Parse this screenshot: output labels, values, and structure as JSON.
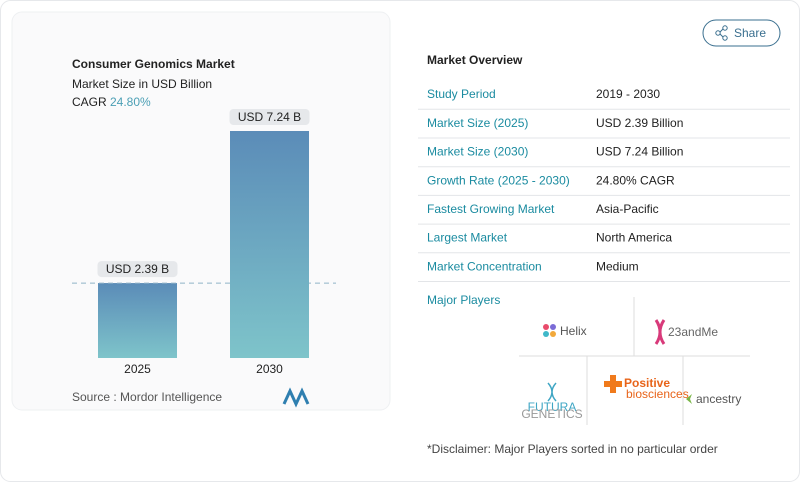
{
  "chart_data": {
    "type": "bar",
    "title": "Consumer Genomics Market",
    "subtitle": "Market Size in USD Billion",
    "cagr_label": "CAGR",
    "cagr_value": "24.80%",
    "categories": [
      "2025",
      "2030"
    ],
    "values": [
      2.39,
      7.24
    ],
    "value_labels": [
      "USD 2.39 B",
      "USD 7.24 B"
    ],
    "source": "Source :  Mordor Intelligence"
  },
  "share": "Share",
  "overview": {
    "title": "Market Overview",
    "rows": [
      [
        "Study Period",
        "2019 - 2030"
      ],
      [
        "Market Size (2025)",
        "USD 2.39 Billion"
      ],
      [
        "Market Size (2030)",
        "USD 7.24 Billion"
      ],
      [
        "Growth Rate (2025 - 2030)",
        "24.80% CAGR"
      ],
      [
        "Fastest Growing Market",
        "Asia-Pacific"
      ],
      [
        "Largest Market",
        "North America"
      ],
      [
        "Market Concentration",
        "Medium"
      ]
    ],
    "players_title": "Major Players",
    "players": [
      [
        "Helix"
      ],
      [
        "23andMe"
      ],
      [
        "FUTURA",
        "GENETICS"
      ],
      [
        "Positive",
        "biosciences"
      ],
      [
        "ancestry"
      ]
    ],
    "disclaimer": "*Disclaimer: Major Players sorted in no particular order"
  }
}
